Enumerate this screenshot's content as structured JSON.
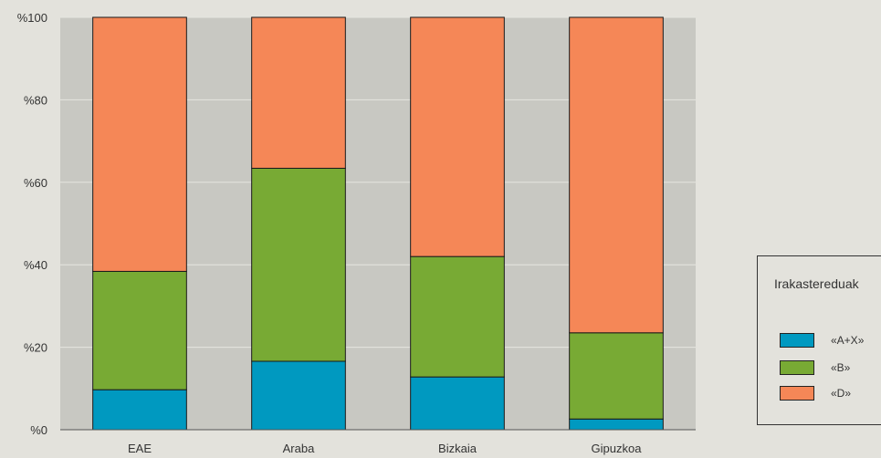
{
  "chart_data": {
    "type": "bar",
    "stacked": true,
    "categories": [
      "EAE",
      "Araba",
      "Bizkaia",
      "Gipuzkoa"
    ],
    "series": [
      {
        "name": "«A+X»",
        "color": "#0099c0",
        "values": [
          9.7,
          16.6,
          12.8,
          2.6
        ]
      },
      {
        "name": "«B»",
        "color": "#78aa34",
        "values": [
          28.7,
          46.8,
          29.2,
          20.9
        ]
      },
      {
        "name": "«D»",
        "color": "#f58757",
        "values": [
          61.6,
          36.6,
          58.0,
          76.5
        ]
      }
    ],
    "ylim": [
      0,
      100
    ],
    "yticks": [
      {
        "value": 0,
        "label": "%0"
      },
      {
        "value": 20,
        "label": "%20"
      },
      {
        "value": 40,
        "label": "%40"
      },
      {
        "value": 60,
        "label": "%60"
      },
      {
        "value": 80,
        "label": "%80"
      },
      {
        "value": 100,
        "label": "%100"
      }
    ],
    "grid": true,
    "legend_title": "Irakastereduak",
    "legend_position": "right"
  }
}
